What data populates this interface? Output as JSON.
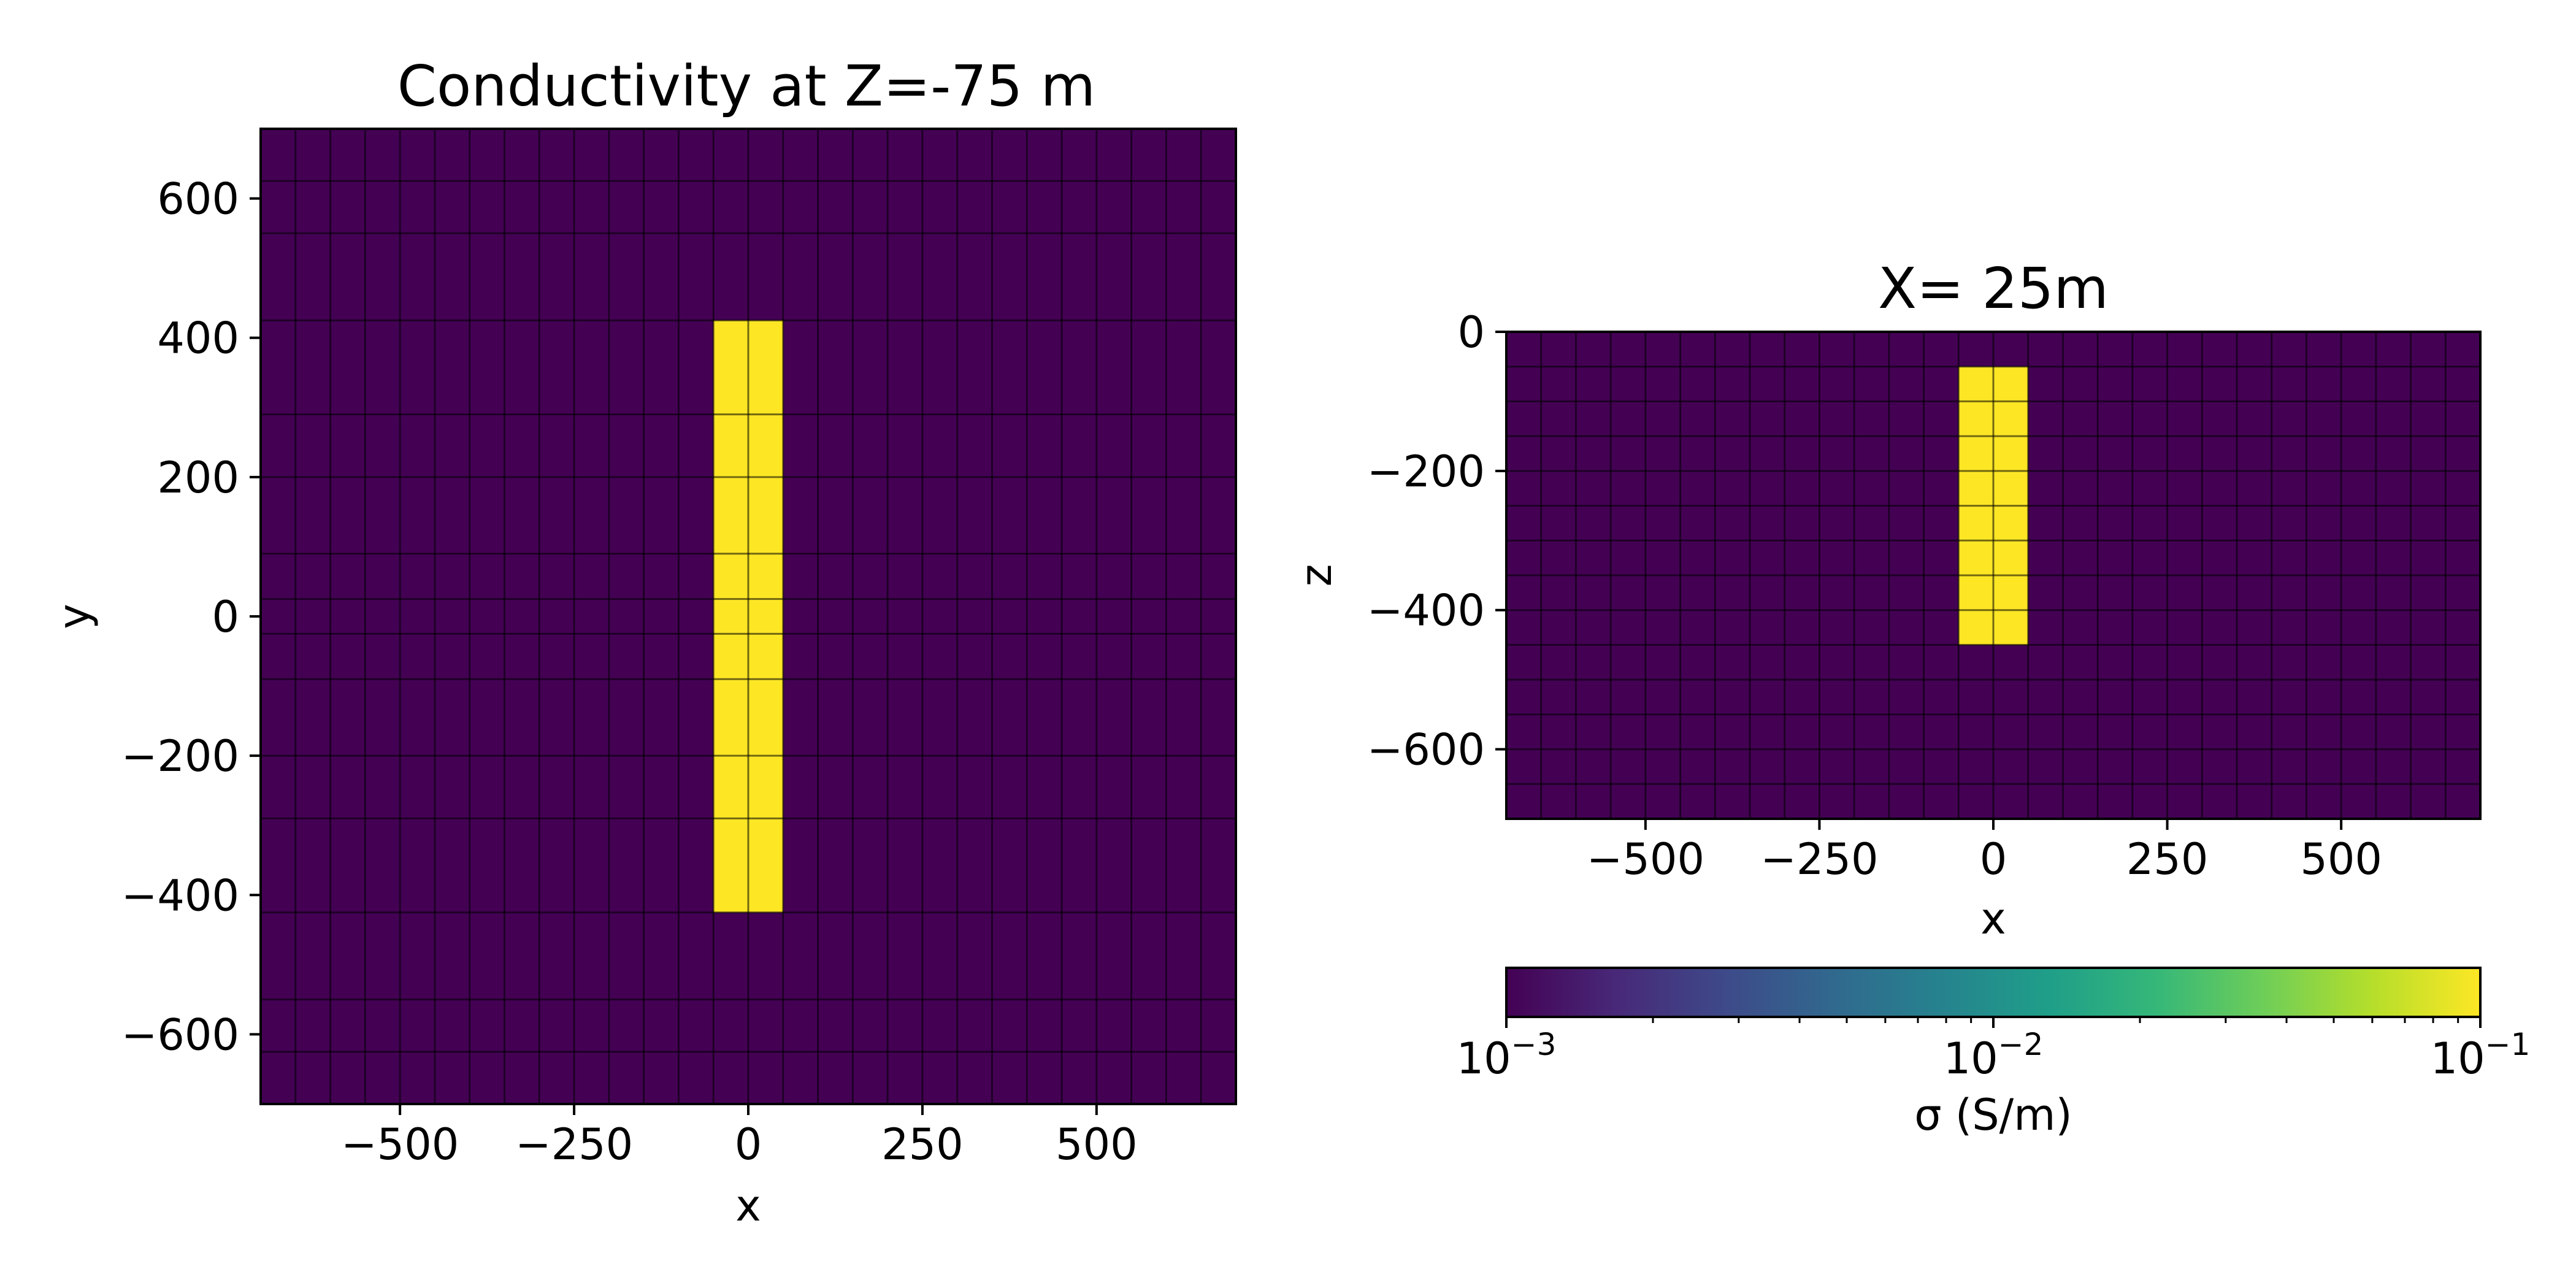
{
  "chart_data": [
    {
      "type": "heatmap",
      "title": "Conductivity at Z=-75 m",
      "xlabel": "x",
      "ylabel": "y",
      "xlim": [
        -700,
        700
      ],
      "ylim": [
        -700,
        700
      ],
      "xticks": [
        -500,
        -250,
        0,
        250,
        500
      ],
      "xtick_labels": [
        "−500",
        "−250",
        "0",
        "250",
        "500"
      ],
      "yticks": [
        600,
        400,
        200,
        0,
        -200,
        -400,
        -600
      ],
      "ytick_labels": [
        "600",
        "400",
        "200",
        "0",
        "−200",
        "−400",
        "−600"
      ],
      "x_cell_edges": [
        -700,
        -650,
        -600,
        -550,
        -500,
        -450,
        -400,
        -350,
        -300,
        -250,
        -200,
        -150,
        -100,
        -50,
        0,
        50,
        100,
        150,
        200,
        250,
        300,
        350,
        400,
        450,
        500,
        550,
        600,
        650,
        700
      ],
      "y_cell_edges": [
        -700,
        -625,
        -550,
        -425,
        -290,
        -200,
        -90,
        -25,
        25,
        90,
        200,
        290,
        425,
        550,
        625,
        700
      ],
      "background_sigma": 0.001,
      "anomaly": {
        "sigma": 0.1,
        "x": [
          -50,
          50
        ],
        "y": [
          -425,
          425
        ]
      },
      "background_color": "#440154",
      "anomaly_color": "#fde725",
      "grid": true
    },
    {
      "type": "heatmap",
      "title": "X= 25m",
      "xlabel": "x",
      "ylabel": "z",
      "xlim": [
        -700,
        700
      ],
      "ylim": [
        -700,
        0
      ],
      "xticks": [
        -500,
        -250,
        0,
        250,
        500
      ],
      "xtick_labels": [
        "−500",
        "−250",
        "0",
        "250",
        "500"
      ],
      "yticks": [
        0,
        -200,
        -400,
        -600
      ],
      "ytick_labels": [
        "0",
        "−200",
        "−400",
        "−600"
      ],
      "x_cell_edges": [
        -700,
        -650,
        -600,
        -550,
        -500,
        -450,
        -400,
        -350,
        -300,
        -250,
        -200,
        -150,
        -100,
        -50,
        0,
        50,
        100,
        150,
        200,
        250,
        300,
        350,
        400,
        450,
        500,
        550,
        600,
        650,
        700
      ],
      "z_cell_edges": [
        -700,
        -650,
        -600,
        -550,
        -500,
        -450,
        -400,
        -350,
        -300,
        -250,
        -200,
        -150,
        -100,
        -50,
        0
      ],
      "background_sigma": 0.001,
      "anomaly": {
        "sigma": 0.1,
        "x": [
          -50,
          50
        ],
        "z": [
          -450,
          -50
        ]
      },
      "background_color": "#440154",
      "anomaly_color": "#fde725",
      "grid": true
    }
  ],
  "colorbar": {
    "label": "σ (S/m)",
    "scale": "log",
    "range": [
      0.001,
      0.1
    ],
    "tick_bases": [
      "10",
      "10",
      "10"
    ],
    "tick_exponents": [
      "−3",
      "−2",
      "−1"
    ],
    "tick_values": [
      0.001,
      0.01,
      0.1
    ],
    "colormap": "viridis",
    "colors": [
      "#440154",
      "#482878",
      "#3e4989",
      "#31688e",
      "#26828e",
      "#1f9e89",
      "#35b779",
      "#6ece58",
      "#b5de2b",
      "#fde725"
    ]
  }
}
